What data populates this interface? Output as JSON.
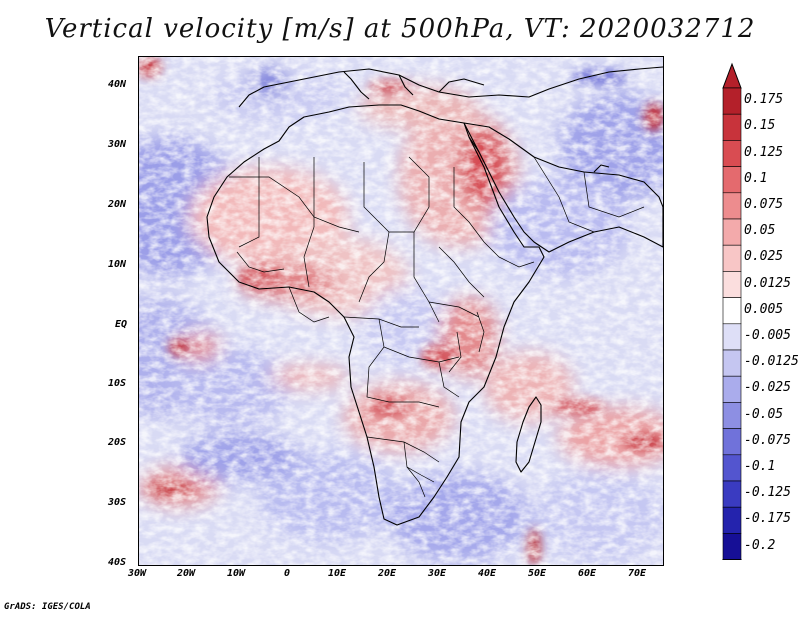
{
  "title": "Vertical velocity [m/s] at 500hPa, VT: 2020032712",
  "footer": "GrADS: IGES/COLA",
  "map": {
    "lon_range": [
      -30,
      75
    ],
    "lat_range": [
      -40,
      45
    ],
    "lon_ticks": [
      "30W",
      "20W",
      "10W",
      "0",
      "10E",
      "20E",
      "30E",
      "40E",
      "50E",
      "60E",
      "70E"
    ],
    "lat_ticks": [
      "40N",
      "30N",
      "20N",
      "10N",
      "EQ",
      "10S",
      "20S",
      "30S",
      "40S"
    ]
  },
  "colorbar": {
    "labels": [
      "0.175",
      "0.15",
      "0.125",
      "0.1",
      "0.075",
      "0.05",
      "0.025",
      "0.0125",
      "0.005",
      "-0.005",
      "-0.0125",
      "-0.025",
      "-0.05",
      "-0.075",
      "-0.1",
      "-0.125",
      "-0.175",
      "-0.2"
    ],
    "colors": [
      "#b4202a",
      "#c8333b",
      "#d94c52",
      "#e46a6e",
      "#ed8c8e",
      "#f3aaab",
      "#f8c6c6",
      "#fbdede",
      "#ffffff",
      "#dedff7",
      "#c5c6f1",
      "#aaacec",
      "#8d8fe3",
      "#7072da",
      "#5355cf",
      "#3a3bc1",
      "#2423ad",
      "#160f96"
    ],
    "top_color": "#b4202a",
    "bottom_color": "#160f96"
  }
}
